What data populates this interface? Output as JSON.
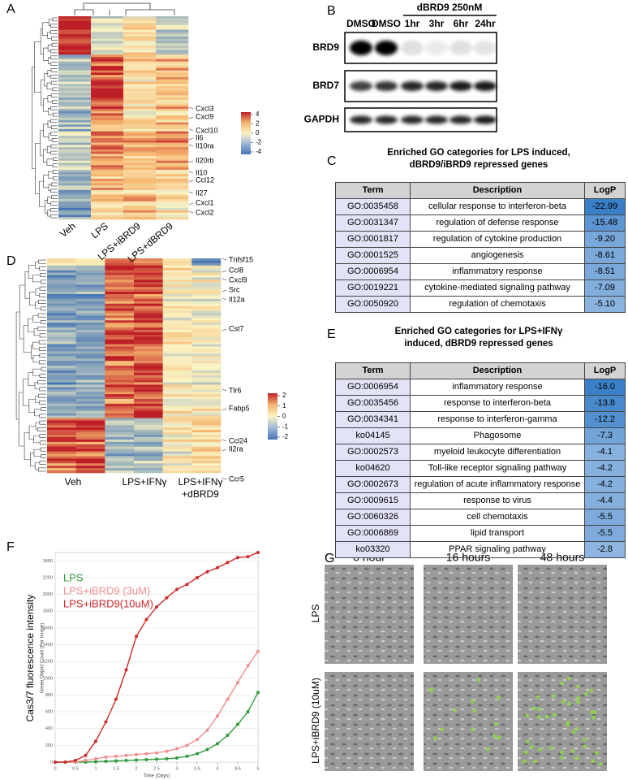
{
  "panel_labels": {
    "a": "A",
    "b": "B",
    "c": "C",
    "d": "D",
    "e": "E",
    "f": "F",
    "g": "G"
  },
  "panel_a": {
    "columns": [
      "Veh",
      "LPS",
      "LPS+iBRD9",
      "LPS+dBRD9"
    ],
    "genes": [
      "Cxcl3",
      "Cxcl9",
      "Cxcl10",
      "Il6",
      "Il10ra",
      "Il20rb",
      "Il10",
      "Ccl12",
      "Il27",
      "Cxcl1",
      "Cxcl2"
    ],
    "colorbar_ticks": [
      4,
      2,
      0,
      -2,
      -4
    ]
  },
  "panel_b": {
    "lanes": [
      "DMSO",
      "DMSO",
      "1hr",
      "3hr",
      "6hr",
      "24hr"
    ],
    "treatment": "dBRD9 250nM",
    "proteins": [
      "BRD9",
      "BRD7",
      "GAPDH"
    ]
  },
  "panel_c": {
    "title_lines": [
      "Enriched GO categories for LPS induced,",
      "dBRD9/iBRD9 repressed genes"
    ],
    "header": [
      "Term",
      "Description",
      "LogP"
    ],
    "rows": [
      [
        "GO:0035458",
        "cellular response to interferon-beta",
        "-22.99"
      ],
      [
        "GO:0031347",
        "regulation of defense response",
        "-15.48"
      ],
      [
        "GO:0001817",
        "regulation of cytokine production",
        "-9.20"
      ],
      [
        "GO:0001525",
        "angiogenesis",
        "-8.61"
      ],
      [
        "GO:0006954",
        "inflammatory response",
        "-8.51"
      ],
      [
        "GO:0019221",
        "cytokine-mediated signaling pathway",
        "-7.09"
      ],
      [
        "GO:0050920",
        "regulation of chemotaxis",
        "-5.10"
      ]
    ]
  },
  "panel_d": {
    "columns": [
      [
        "Veh"
      ],
      [
        "LPS+IFNγ"
      ],
      [
        "LPS+IFNγ",
        "+dBRD9"
      ]
    ],
    "genes": [
      "Tnfsf15",
      "Ccl8",
      "Cxcl9",
      "Src",
      "Il12a",
      "Cst7",
      "Tlr6",
      "Fabp5",
      "Ccl24",
      "Il2ra",
      "Ccr5"
    ],
    "colorbar_ticks": [
      2,
      1,
      0,
      -1,
      -2
    ]
  },
  "panel_e": {
    "title_lines": [
      "Enriched GO categories for LPS+IFNγ",
      "induced, dBRD9 repressed genes"
    ],
    "header": [
      "Term",
      "Description",
      "LogP"
    ],
    "rows": [
      [
        "GO:0006954",
        "inflammatory response",
        "-16.0"
      ],
      [
        "GO:0035456",
        "response to interferon-beta",
        "-13.8"
      ],
      [
        "GO:0034341",
        "response to interferon-gamma",
        "-12.2"
      ],
      [
        "ko04145",
        "Phagosome",
        "-7.3"
      ],
      [
        "GO:0002573",
        "myeloid leukocyte differentiation",
        "-4.1"
      ],
      [
        "ko04620",
        "Toll-like receptor signaling pathway",
        "-4.2"
      ],
      [
        "GO:0002673",
        "regulation of acute inflammatory response",
        "-4.2"
      ],
      [
        "GO:0009615",
        "response to virus",
        "-4.4"
      ],
      [
        "GO:0060326",
        "cell chemotaxis",
        "-5.5"
      ],
      [
        "GO:0006869",
        "lipid transport",
        "-5.5"
      ],
      [
        "ko03320",
        "PPAR signaling pathway",
        "-2.8"
      ]
    ]
  },
  "chart_data": {
    "type": "line",
    "y_title": "Cas3/7 fluorescence intensity",
    "y_subtitle": "Green Object Count (Per Image)",
    "x_title": "Time (Days)",
    "x": [
      0,
      0.25,
      0.5,
      0.75,
      1,
      1.25,
      1.5,
      1.75,
      2,
      2.25,
      2.5,
      2.75,
      3,
      3.25,
      3.5,
      3.75,
      4,
      4.25,
      4.5,
      4.75,
      5
    ],
    "series": [
      {
        "name": "LPS",
        "color": "#2e9a3c",
        "values": [
          0,
          0,
          0,
          0,
          5,
          10,
          15,
          20,
          25,
          30,
          35,
          40,
          50,
          70,
          100,
          150,
          220,
          320,
          450,
          600,
          830
        ]
      },
      {
        "name": "LPS+iBRD9 (3uM)",
        "color": "#ef8f8f",
        "values": [
          0,
          0,
          0,
          20,
          40,
          60,
          70,
          80,
          90,
          100,
          110,
          130,
          160,
          200,
          270,
          380,
          550,
          750,
          950,
          1150,
          1320
        ]
      },
      {
        "name": "LPS+iBRD9(10uM)",
        "color": "#cc2a2a",
        "values": [
          0,
          0,
          20,
          80,
          250,
          480,
          750,
          1100,
          1500,
          1700,
          1850,
          1960,
          2060,
          2120,
          2200,
          2270,
          2320,
          2380,
          2440,
          2450,
          2500
        ]
      }
    ],
    "xlim": [
      0,
      5
    ],
    "ylim": [
      0,
      2500
    ],
    "xticks": [
      0,
      0.5,
      1,
      1.5,
      2,
      2.5,
      3,
      3.5,
      4,
      4.5,
      5
    ],
    "yticks": [
      0,
      200,
      400,
      600,
      800,
      1000,
      1200,
      1400,
      1600,
      1800,
      2000,
      2200,
      2400
    ],
    "grid": true
  },
  "panel_g": {
    "time_labels": [
      "0 hour",
      "16 hours",
      "48 hours"
    ],
    "row_labels": [
      "LPS",
      "LPS+iBRD9 (10uM)"
    ]
  }
}
